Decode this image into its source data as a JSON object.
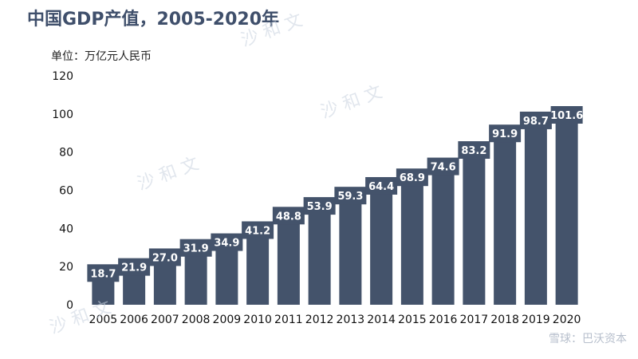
{
  "title": "中国GDP产值，2005-2020年",
  "unit_label": "单位：万亿元人民币",
  "source_watermark": "雪球：巴沃资本",
  "watermarks": [
    "沙 和 文",
    "沙 和 文",
    "沙 和 文",
    "沙 和 文"
  ],
  "colors": {
    "bar": "#44536b",
    "label_text": "#ffffff",
    "axis_text": "#111111",
    "title": "#3f4f6b"
  },
  "chart_data": {
    "type": "bar",
    "title": "中国GDP产值，2005-2020年",
    "ylabel": "单位：万亿元人民币",
    "xlabel": "",
    "categories": [
      "2005",
      "2006",
      "2007",
      "2008",
      "2009",
      "2010",
      "2011",
      "2012",
      "2013",
      "2014",
      "2015",
      "2016",
      "2017",
      "2018",
      "2019",
      "2020"
    ],
    "values": [
      18.7,
      21.9,
      27.0,
      31.9,
      34.9,
      41.2,
      48.8,
      53.9,
      59.3,
      64.4,
      68.9,
      74.6,
      83.2,
      91.9,
      98.7,
      101.6
    ],
    "value_labels": [
      "18.7",
      "21.9",
      "27.0",
      "31.9",
      "34.9",
      "41.2",
      "48.8",
      "53.9",
      "59.3",
      "64.4",
      "68.9",
      "74.6",
      "83.2",
      "91.9",
      "98.7",
      "101.6"
    ],
    "ylim": [
      0,
      120
    ],
    "yticks": [
      0,
      20,
      40,
      60,
      80,
      100,
      120
    ],
    "grid": false,
    "legend": "none"
  }
}
